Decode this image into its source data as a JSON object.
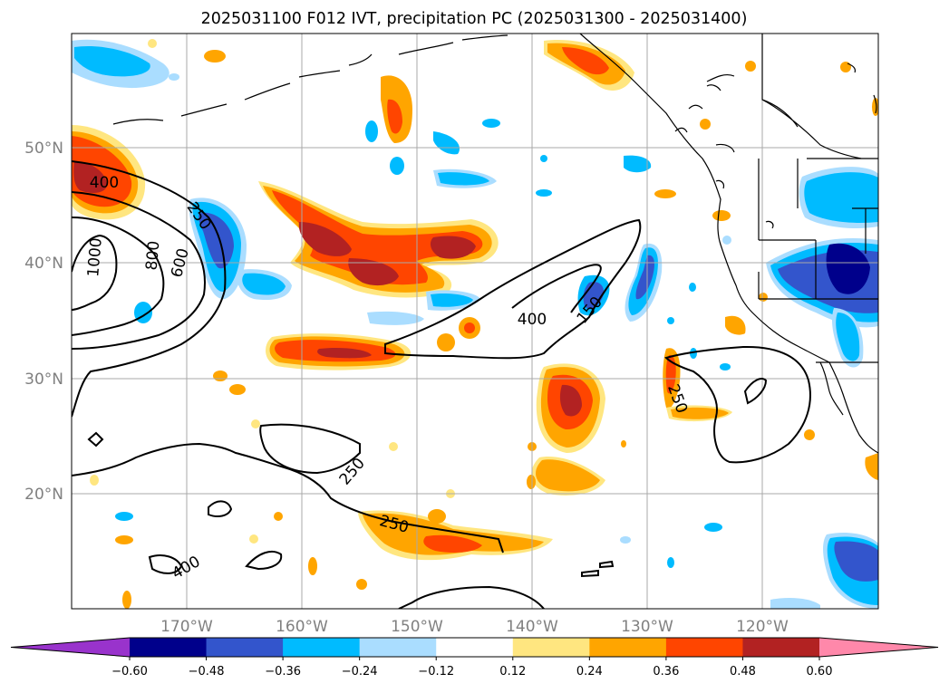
{
  "figure": {
    "title": "2025031100 F012 IVT, precipitation PC (2025031300 - 2025031400)"
  },
  "map": {
    "projection": "cylindrical",
    "lon_range": [
      -180,
      -110
    ],
    "lat_range": [
      10,
      60
    ],
    "grid": true,
    "lat_ticks": [
      "20°N",
      "30°N",
      "40°N",
      "50°N"
    ],
    "lon_ticks": [
      "170°W",
      "160°W",
      "150°W",
      "140°W",
      "130°W",
      "120°W"
    ],
    "ivt_contour_labels": [
      "400",
      "250",
      "1000",
      "800",
      "600",
      "400",
      "150",
      "250",
      "250",
      "250",
      "400"
    ]
  },
  "colorbar": {
    "orientation": "horizontal",
    "extend": "both",
    "bounds": [
      -0.6,
      -0.48,
      -0.36,
      -0.24,
      -0.12,
      0.12,
      0.24,
      0.36,
      0.48,
      0.6
    ],
    "tick_labels": [
      "−0.60",
      "−0.48",
      "−0.36",
      "−0.24",
      "−0.12",
      "0.12",
      "0.24",
      "0.36",
      "0.48",
      "0.60"
    ],
    "colors": [
      "#9933cc",
      "#00008b",
      "#3355cc",
      "#00bbff",
      "#aaddff",
      "#ffffff",
      "#ffe680",
      "#ffa500",
      "#ff4500",
      "#b22222",
      "#ff88aa"
    ]
  },
  "colors": {
    "land_outline": "#000000",
    "grid": "#a9a9a9",
    "ivt_contour": "#000000"
  }
}
